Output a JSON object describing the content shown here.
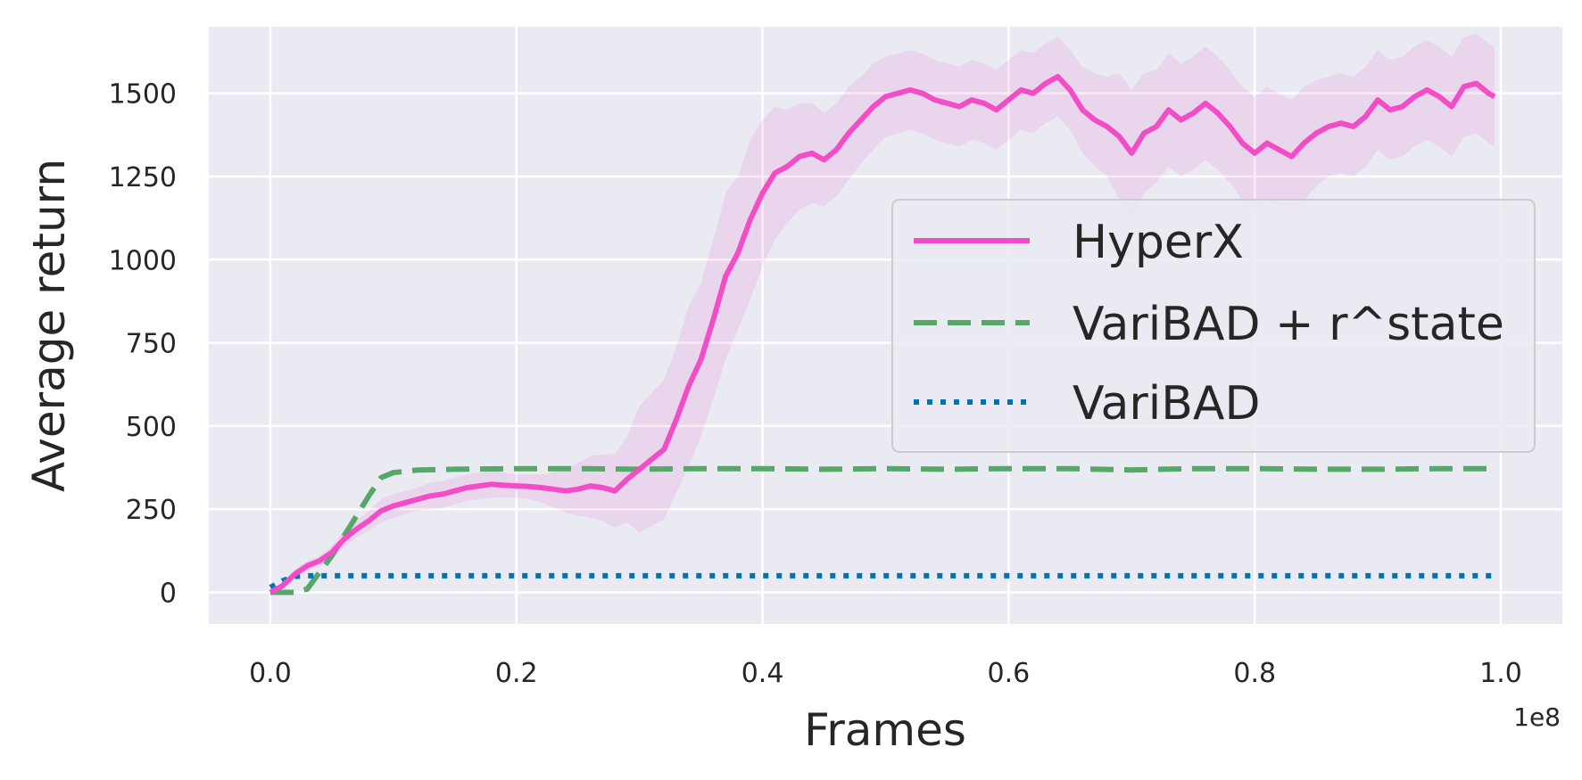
{
  "chart_data": {
    "type": "line",
    "xlabel": "Frames",
    "ylabel": "Average return",
    "x_offset_label": "1e8",
    "xlim": [
      -0.05,
      1.05
    ],
    "ylim": [
      -95,
      1700
    ],
    "xticks": [
      0.0,
      0.2,
      0.4,
      0.6,
      0.8,
      1.0
    ],
    "xtick_labels": [
      "0.0",
      "0.2",
      "0.4",
      "0.6",
      "0.8",
      "1.0"
    ],
    "yticks": [
      0,
      250,
      500,
      750,
      1000,
      1250,
      1500
    ],
    "ytick_labels": [
      "0",
      "250",
      "500",
      "750",
      "1000",
      "1250",
      "1500"
    ],
    "grid": true,
    "legend_position": "center-right",
    "background_color": "#eaeaf2",
    "series": [
      {
        "name": "HyperX",
        "color": "#f24dc6",
        "style": "solid",
        "x": [
          0.0,
          0.01,
          0.02,
          0.03,
          0.04,
          0.05,
          0.06,
          0.07,
          0.08,
          0.09,
          0.1,
          0.11,
          0.12,
          0.13,
          0.14,
          0.15,
          0.16,
          0.17,
          0.18,
          0.19,
          0.2,
          0.21,
          0.22,
          0.23,
          0.24,
          0.25,
          0.26,
          0.27,
          0.28,
          0.29,
          0.3,
          0.31,
          0.32,
          0.33,
          0.34,
          0.35,
          0.36,
          0.37,
          0.38,
          0.39,
          0.4,
          0.41,
          0.42,
          0.43,
          0.44,
          0.45,
          0.46,
          0.47,
          0.48,
          0.49,
          0.5,
          0.51,
          0.52,
          0.53,
          0.54,
          0.55,
          0.56,
          0.57,
          0.58,
          0.59,
          0.6,
          0.61,
          0.62,
          0.63,
          0.64,
          0.65,
          0.66,
          0.67,
          0.68,
          0.69,
          0.7,
          0.71,
          0.72,
          0.73,
          0.74,
          0.75,
          0.76,
          0.77,
          0.78,
          0.79,
          0.8,
          0.81,
          0.82,
          0.83,
          0.84,
          0.85,
          0.86,
          0.87,
          0.88,
          0.89,
          0.9,
          0.91,
          0.92,
          0.93,
          0.94,
          0.95,
          0.96,
          0.97,
          0.98,
          0.99,
          0.995
        ],
        "values": [
          0,
          20,
          55,
          80,
          95,
          120,
          160,
          190,
          215,
          245,
          260,
          270,
          280,
          290,
          295,
          305,
          315,
          320,
          325,
          322,
          320,
          318,
          315,
          310,
          305,
          310,
          320,
          315,
          305,
          340,
          370,
          400,
          430,
          520,
          620,
          700,
          820,
          950,
          1020,
          1120,
          1200,
          1260,
          1280,
          1310,
          1320,
          1300,
          1330,
          1380,
          1420,
          1460,
          1490,
          1500,
          1510,
          1500,
          1480,
          1470,
          1460,
          1480,
          1470,
          1450,
          1480,
          1510,
          1500,
          1530,
          1550,
          1510,
          1450,
          1420,
          1400,
          1370,
          1320,
          1380,
          1400,
          1450,
          1420,
          1440,
          1470,
          1440,
          1400,
          1350,
          1320,
          1350,
          1330,
          1310,
          1350,
          1380,
          1400,
          1410,
          1400,
          1430,
          1480,
          1450,
          1460,
          1490,
          1510,
          1490,
          1460,
          1520,
          1530,
          1500,
          1490
        ],
        "band_lower": [
          0,
          10,
          40,
          65,
          80,
          100,
          135,
          165,
          185,
          210,
          225,
          235,
          245,
          250,
          255,
          265,
          275,
          280,
          285,
          285,
          285,
          280,
          270,
          255,
          240,
          230,
          225,
          215,
          195,
          210,
          180,
          200,
          220,
          300,
          380,
          470,
          580,
          700,
          790,
          880,
          980,
          1060,
          1110,
          1150,
          1170,
          1160,
          1190,
          1240,
          1290,
          1330,
          1370,
          1380,
          1390,
          1380,
          1360,
          1350,
          1340,
          1360,
          1350,
          1330,
          1360,
          1390,
          1380,
          1410,
          1430,
          1390,
          1320,
          1280,
          1250,
          1180,
          1130,
          1200,
          1230,
          1280,
          1250,
          1270,
          1300,
          1270,
          1230,
          1180,
          1150,
          1180,
          1160,
          1140,
          1180,
          1220,
          1250,
          1260,
          1250,
          1280,
          1330,
          1300,
          1310,
          1340,
          1360,
          1340,
          1310,
          1370,
          1380,
          1350,
          1340
        ],
        "band_upper": [
          5,
          30,
          70,
          95,
          110,
          140,
          185,
          215,
          245,
          280,
          295,
          305,
          315,
          330,
          335,
          345,
          355,
          360,
          365,
          360,
          355,
          355,
          355,
          360,
          370,
          390,
          410,
          415,
          415,
          470,
          560,
          600,
          640,
          740,
          860,
          930,
          1060,
          1200,
          1250,
          1360,
          1420,
          1460,
          1450,
          1470,
          1470,
          1440,
          1470,
          1520,
          1550,
          1590,
          1610,
          1620,
          1630,
          1620,
          1600,
          1590,
          1580,
          1600,
          1590,
          1570,
          1600,
          1630,
          1620,
          1650,
          1670,
          1630,
          1580,
          1560,
          1550,
          1560,
          1510,
          1560,
          1570,
          1620,
          1590,
          1610,
          1640,
          1610,
          1570,
          1520,
          1490,
          1520,
          1500,
          1480,
          1520,
          1540,
          1550,
          1560,
          1550,
          1580,
          1630,
          1600,
          1610,
          1640,
          1660,
          1640,
          1610,
          1670,
          1680,
          1650,
          1640
        ]
      },
      {
        "name": "VariBAD + r^state",
        "color": "#55a868",
        "style": "dashed",
        "x": [
          0.0,
          0.01,
          0.02,
          0.03,
          0.04,
          0.05,
          0.06,
          0.07,
          0.08,
          0.09,
          0.1,
          0.12,
          0.15,
          0.2,
          0.25,
          0.3,
          0.35,
          0.4,
          0.45,
          0.5,
          0.55,
          0.6,
          0.65,
          0.7,
          0.75,
          0.8,
          0.85,
          0.9,
          0.95,
          0.995
        ],
        "values": [
          0,
          0,
          0,
          10,
          60,
          110,
          170,
          230,
          290,
          345,
          360,
          368,
          370,
          372,
          372,
          370,
          372,
          372,
          370,
          372,
          370,
          372,
          372,
          368,
          372,
          372,
          370,
          370,
          372,
          372
        ]
      },
      {
        "name": "VariBAD",
        "color": "#0173b2",
        "style": "dotted",
        "x": [
          0.0,
          0.01,
          0.02,
          0.03,
          0.05,
          0.1,
          0.2,
          0.3,
          0.4,
          0.5,
          0.6,
          0.7,
          0.8,
          0.9,
          0.995
        ],
        "values": [
          15,
          35,
          48,
          50,
          50,
          50,
          50,
          50,
          50,
          50,
          50,
          50,
          50,
          50,
          50
        ]
      }
    ]
  }
}
